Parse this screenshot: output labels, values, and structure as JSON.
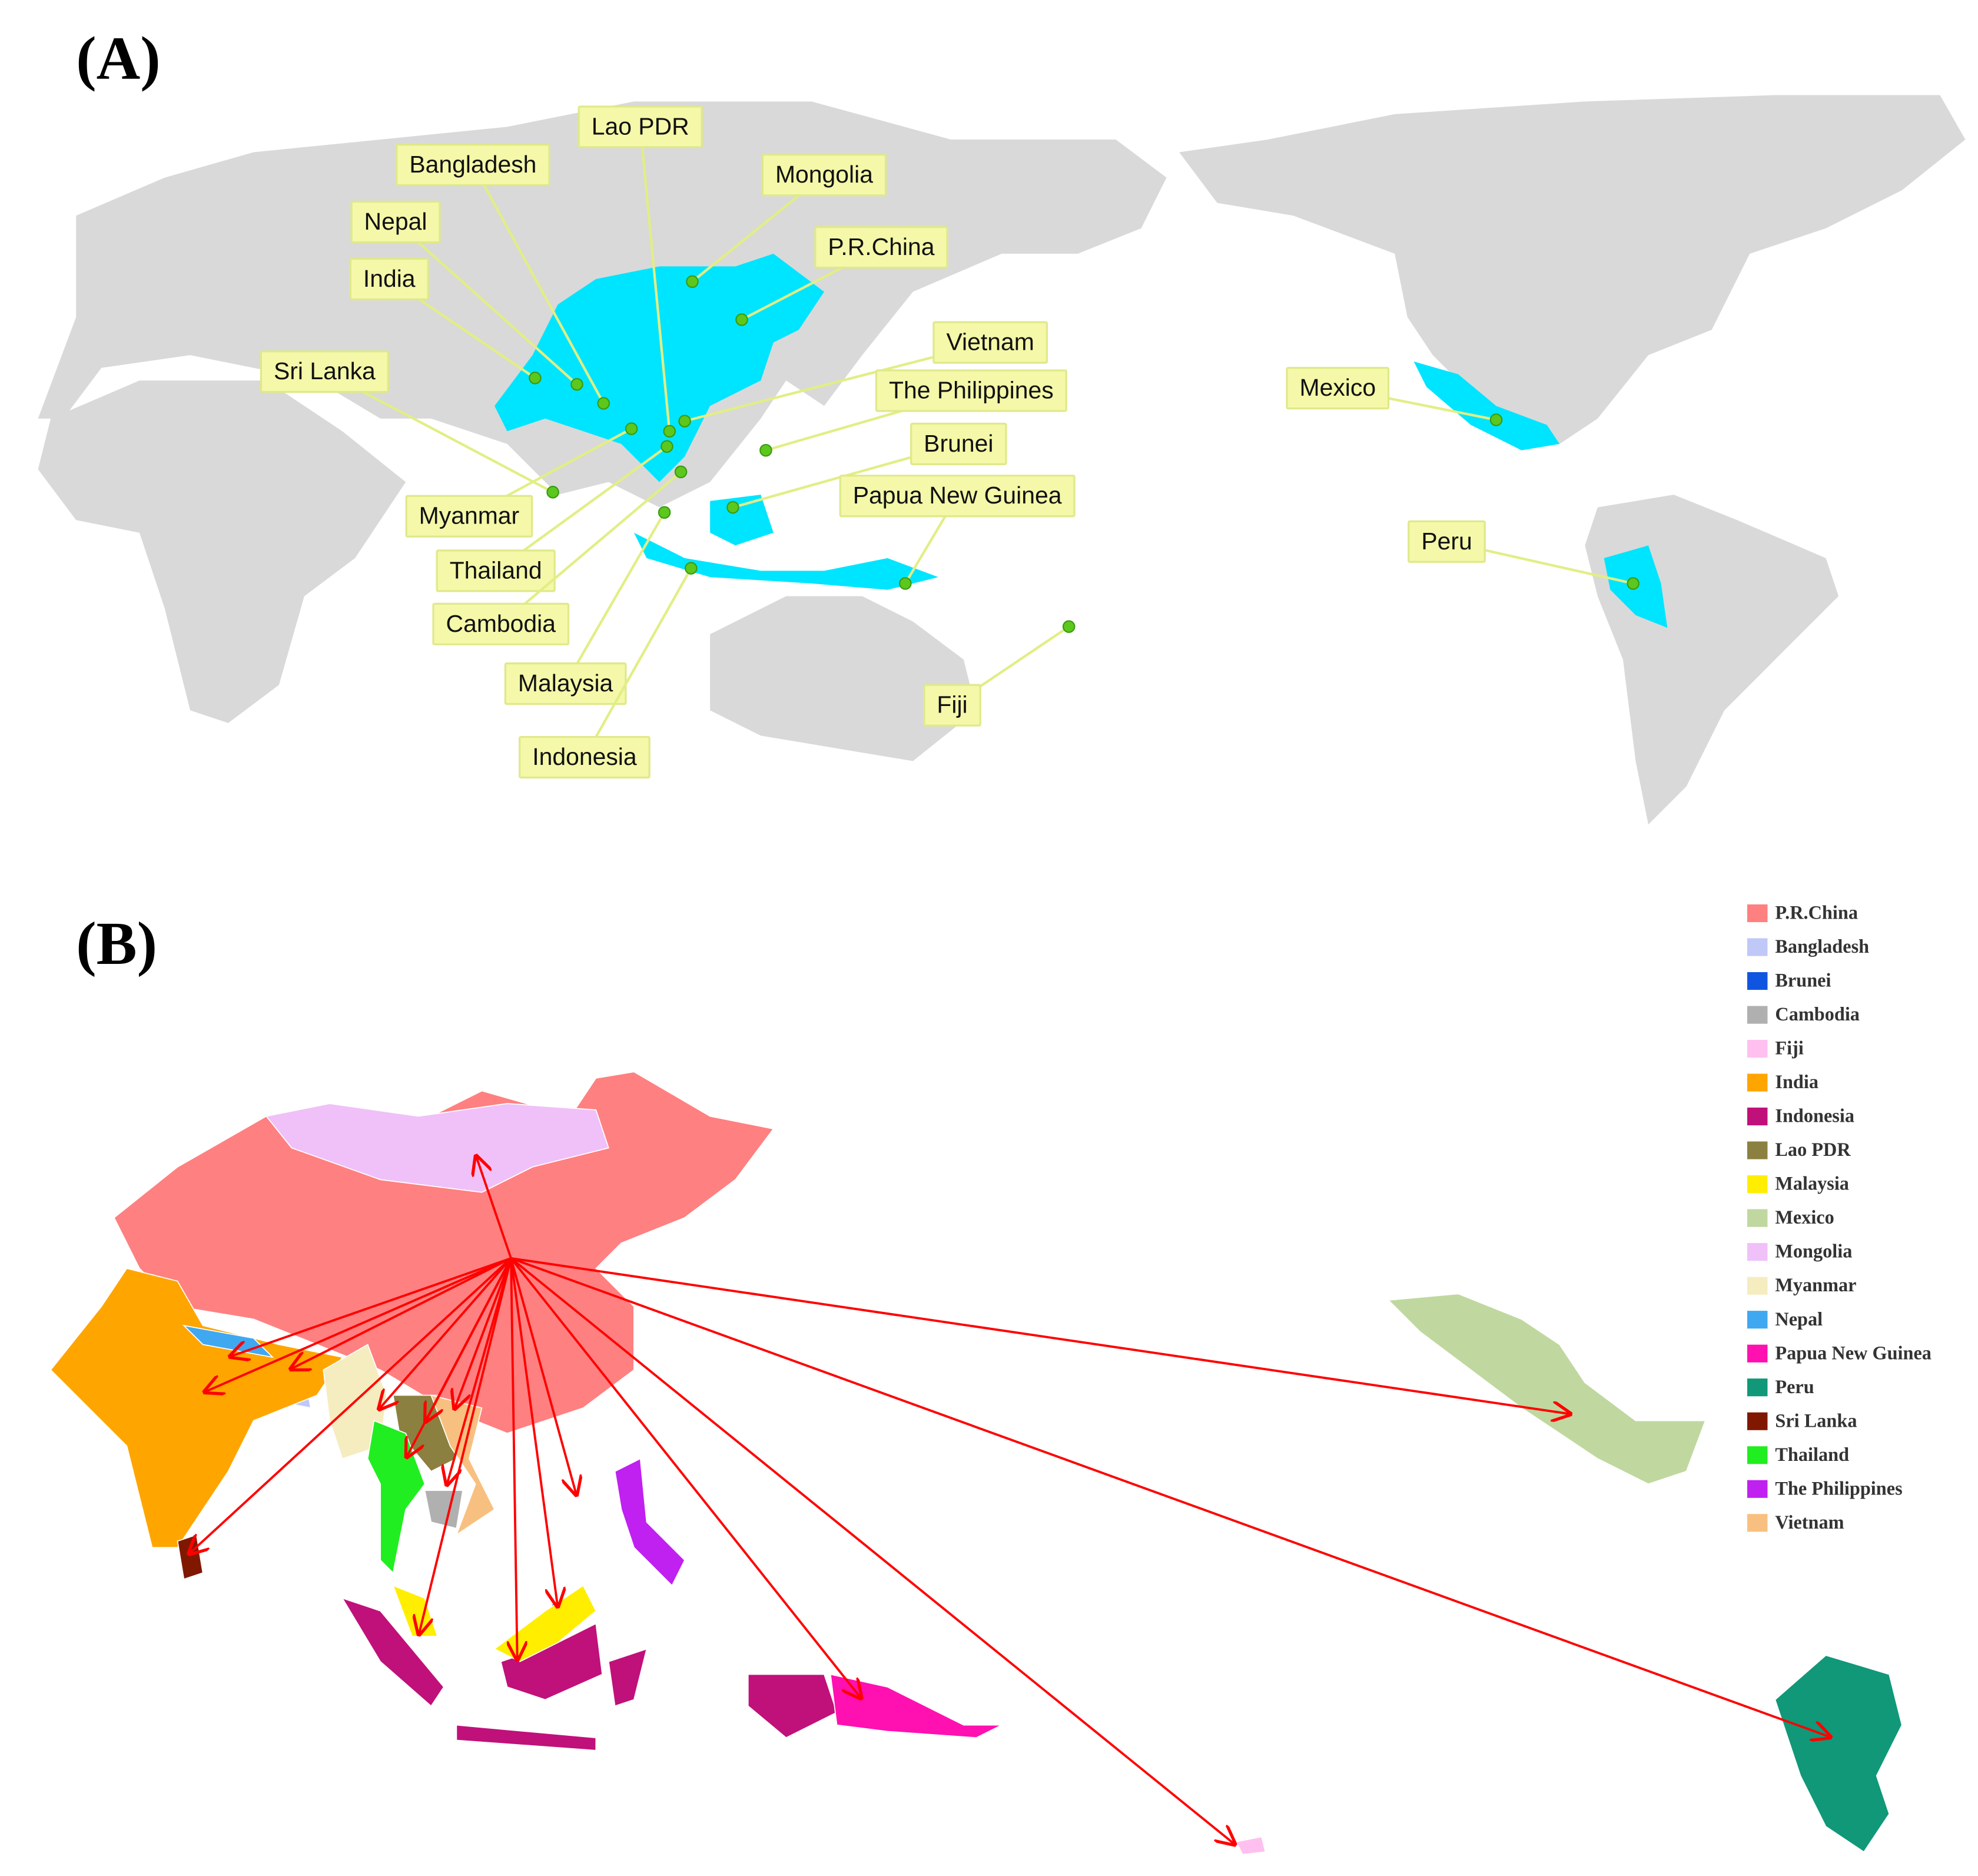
{
  "panels": [
    {
      "tag": "(A)",
      "labels": [
        "Lao PDR",
        "Bangladesh",
        "Mongolia",
        "Nepal",
        "P.R.China",
        "India",
        "Vietnam",
        "Sri Lanka",
        "The Philippines",
        "Mexico",
        "Brunei",
        "Myanmar",
        "Papua New Guinea",
        "Thailand",
        "Peru",
        "Cambodia",
        "Malaysia",
        "Fiji",
        "Indonesia"
      ]
    },
    {
      "tag": "(B)",
      "legend": [
        {
          "name": "P.R.China",
          "color": "#ff8080"
        },
        {
          "name": "Bangladesh",
          "color": "#c0c8f8"
        },
        {
          "name": "Brunei",
          "color": "#1055e0"
        },
        {
          "name": "Cambodia",
          "color": "#b0b0b0"
        },
        {
          "name": "Fiji",
          "color": "#ffc0f0"
        },
        {
          "name": "India",
          "color": "#ffa500"
        },
        {
          "name": "Indonesia",
          "color": "#c0107a"
        },
        {
          "name": "Lao PDR",
          "color": "#8b8040"
        },
        {
          "name": "Malaysia",
          "color": "#ffee00"
        },
        {
          "name": "Mexico",
          "color": "#c0d8a0"
        },
        {
          "name": "Mongolia",
          "color": "#f0c0f8"
        },
        {
          "name": "Myanmar",
          "color": "#f5ecc0"
        },
        {
          "name": "Nepal",
          "color": "#40a8f0"
        },
        {
          "name": "Papua New Guinea",
          "color": "#ff10b0"
        },
        {
          "name": "Peru",
          "color": "#109878"
        },
        {
          "name": "Sri Lanka",
          "color": "#801800"
        },
        {
          "name": "Thailand",
          "color": "#20ee20"
        },
        {
          "name": "The Philippines",
          "color": "#c020f0"
        },
        {
          "name": "Vietnam",
          "color": "#f8c080"
        }
      ]
    }
  ]
}
